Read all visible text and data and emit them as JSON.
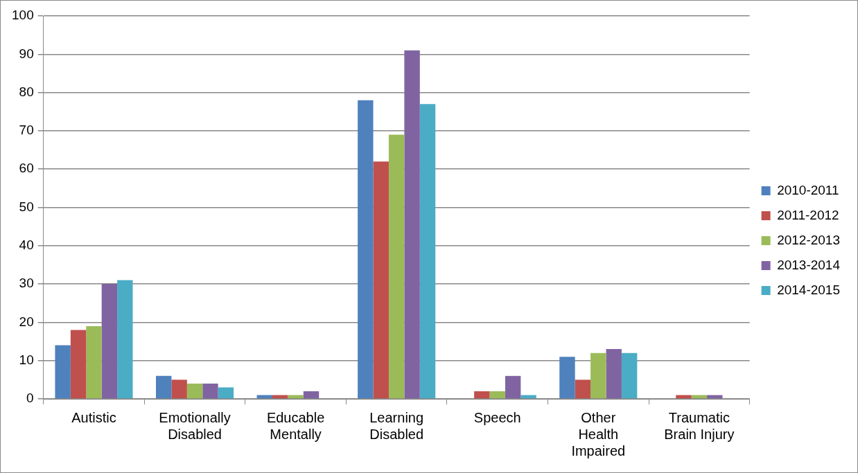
{
  "chart_data": {
    "type": "bar",
    "categories": [
      "Autistic",
      "Emotionally Disabled",
      "Educable Mentally",
      "Learning Disabled",
      "Speech",
      "Other Health Impaired",
      "Traumatic Brain Injury"
    ],
    "series": [
      {
        "name": "2010-2011",
        "color": "#4f81bd",
        "values": [
          14,
          6,
          1,
          78,
          0,
          11,
          0
        ]
      },
      {
        "name": "2011-2012",
        "color": "#c0504d",
        "values": [
          18,
          5,
          1,
          62,
          2,
          5,
          1
        ]
      },
      {
        "name": "2012-2013",
        "color": "#9bbb59",
        "values": [
          19,
          4,
          1,
          69,
          2,
          12,
          1
        ]
      },
      {
        "name": "2013-2014",
        "color": "#8064a2",
        "values": [
          30,
          4,
          2,
          91,
          6,
          13,
          1
        ]
      },
      {
        "name": "2014-2015",
        "color": "#4bacc6",
        "values": [
          31,
          3,
          0,
          77,
          1,
          12,
          0
        ]
      }
    ],
    "ylim": [
      0,
      100
    ],
    "yticks": [
      0,
      10,
      20,
      30,
      40,
      50,
      60,
      70,
      80,
      90,
      100
    ],
    "grid": "y",
    "legend": "right"
  }
}
